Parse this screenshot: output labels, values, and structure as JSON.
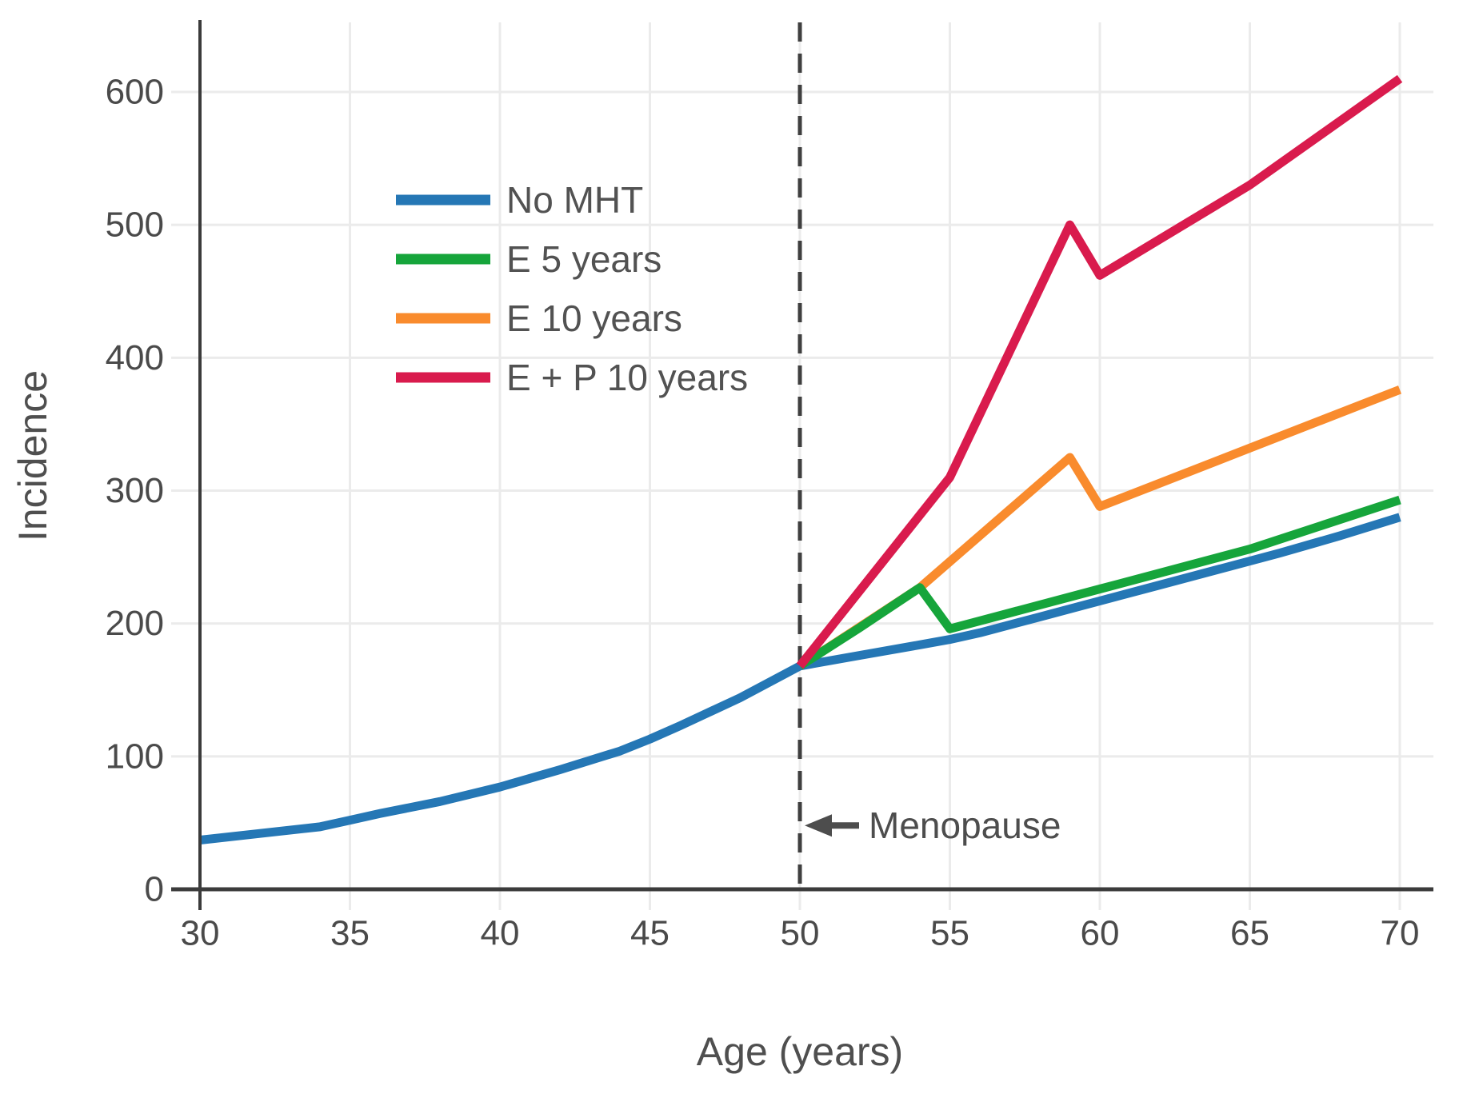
{
  "chart_data": {
    "type": "line",
    "title": "",
    "xlabel": "Age (years)",
    "ylabel": "Incidence",
    "xlim": [
      30,
      70
    ],
    "ylim": [
      0,
      650
    ],
    "x_ticks": [
      30,
      35,
      40,
      45,
      50,
      55,
      60,
      65,
      70
    ],
    "y_ticks": [
      0,
      100,
      200,
      300,
      400,
      500,
      600
    ],
    "grid": true,
    "legend_position": "upper-left-inside",
    "series": [
      {
        "name": "No MHT",
        "color": "#2577b5",
        "x": [
          30,
          32,
          34,
          35,
          36,
          38,
          40,
          42,
          44,
          45,
          46,
          48,
          50,
          52,
          54,
          55,
          56,
          58,
          60,
          62,
          64,
          65,
          66,
          68,
          70
        ],
        "y": [
          37,
          42,
          47,
          52,
          57,
          66,
          77,
          90,
          104,
          113,
          123,
          144,
          168,
          176,
          184,
          188,
          193,
          205,
          217,
          229,
          241,
          247,
          253,
          266,
          280
        ]
      },
      {
        "name": "E 5 years",
        "color": "#16a53b",
        "x": [
          50,
          52,
          54,
          55,
          60,
          65,
          70
        ],
        "y": [
          168,
          197,
          227,
          196,
          226,
          256,
          293
        ]
      },
      {
        "name": "E 10 years",
        "color": "#f98b2d",
        "x": [
          50,
          54,
          59,
          60,
          65,
          70
        ],
        "y": [
          168,
          227,
          325,
          288,
          332,
          376
        ]
      },
      {
        "name": "E + P 10 years",
        "color": "#d91b4d",
        "x": [
          50,
          55,
          59,
          60,
          65,
          70
        ],
        "y": [
          168,
          310,
          500,
          462,
          530,
          610
        ]
      }
    ],
    "vline": {
      "x": 50,
      "style": "dashed",
      "color": "#3f3f3f"
    },
    "annotations": [
      {
        "text": "Menopause",
        "arrow": "left",
        "x": 50.9,
        "y": 48
      }
    ],
    "colors": {
      "grid": "#ebebeb",
      "axis": "#3b3b3b",
      "tick_text": "#4a4a4a"
    }
  }
}
